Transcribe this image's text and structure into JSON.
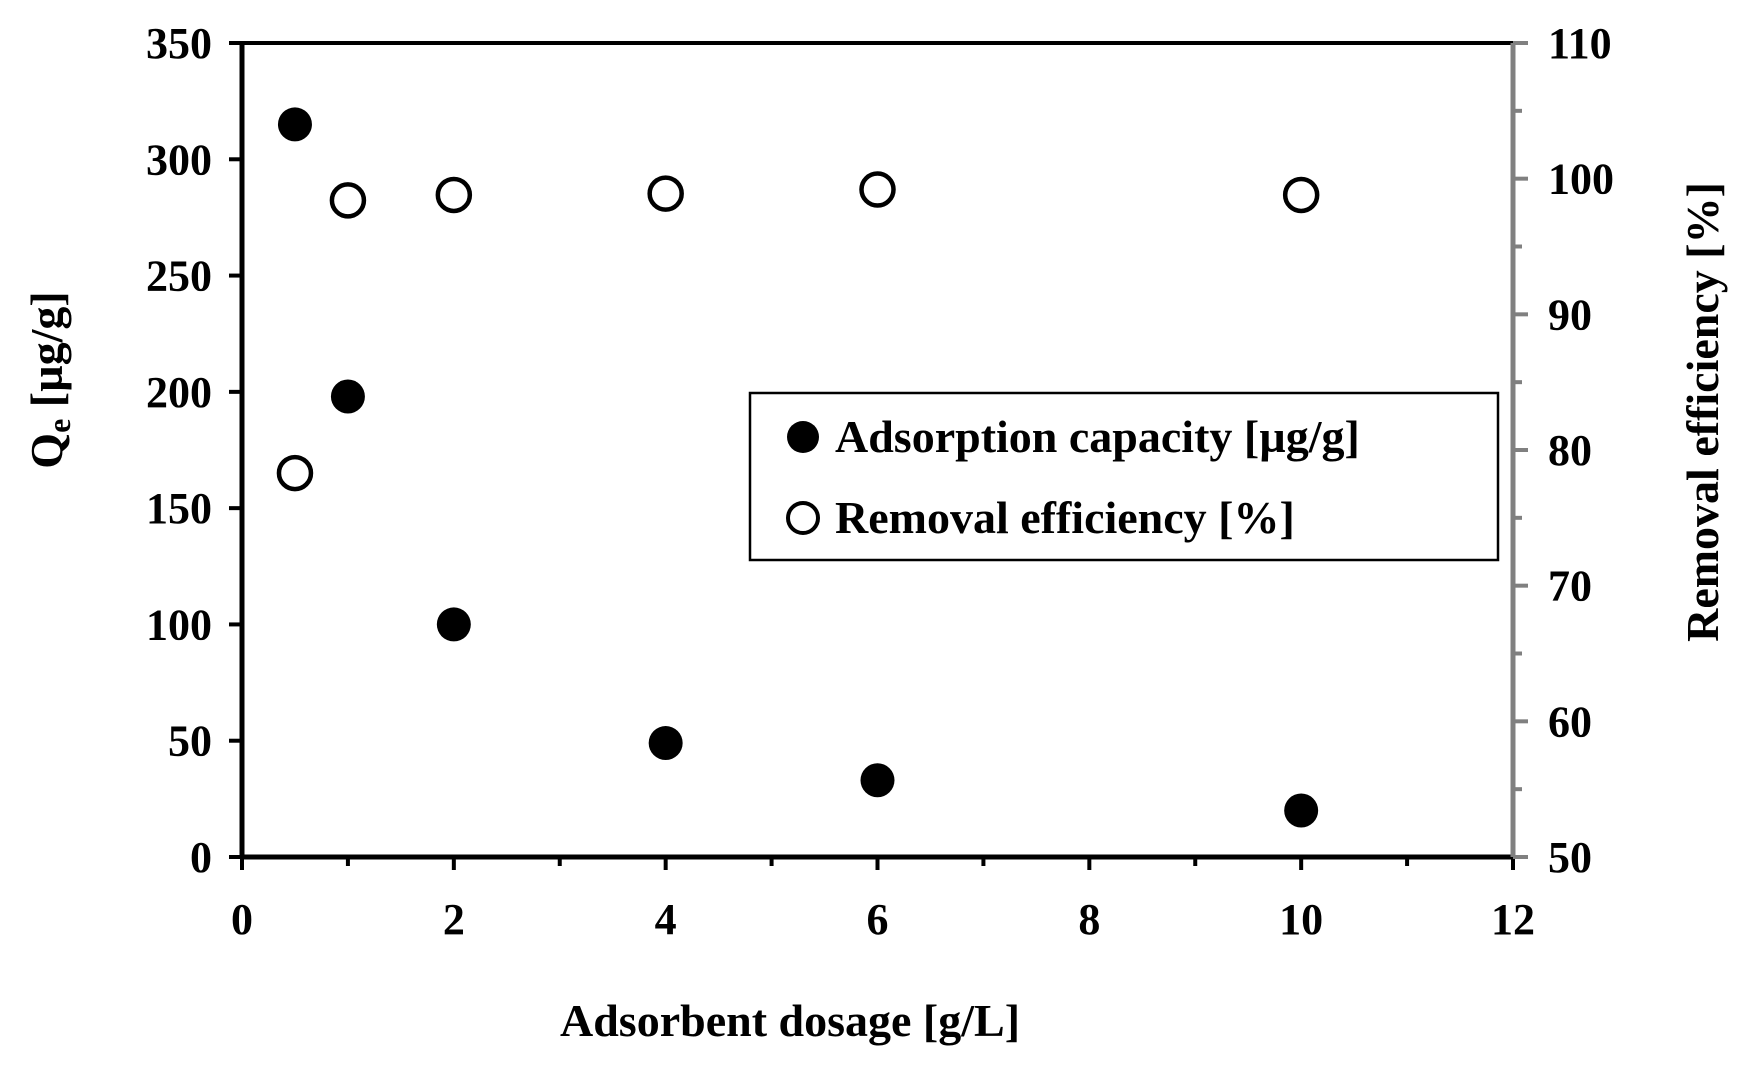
{
  "chart_data": {
    "type": "scatter",
    "title": "",
    "xlabel": "Adsorbent dosage [g/L]",
    "ylabel": "Qe [µg/g]",
    "ylabel_main": "Q",
    "ylabel_sub": "e",
    "ylabel_rest": " [µg/g]",
    "y2label": "Removal efficiency  [%]",
    "xlim": [
      0,
      12
    ],
    "ylim": [
      0,
      350
    ],
    "y2lim": [
      50,
      110
    ],
    "x_major_ticks": [
      0,
      2,
      4,
      6,
      8,
      10,
      12
    ],
    "x_minor_ticks": [
      1,
      3,
      5,
      7,
      9,
      11
    ],
    "y_ticks": [
      0,
      50,
      100,
      150,
      200,
      250,
      300,
      350
    ],
    "y2_major_ticks": [
      50,
      60,
      70,
      80,
      90,
      100,
      110
    ],
    "y2_minor_ticks": [
      55,
      65,
      75,
      85,
      95,
      105
    ],
    "x_tick_labels": [
      "0",
      "2",
      "4",
      "6",
      "8",
      "10",
      "12"
    ],
    "y_tick_labels": [
      "0",
      "50",
      "100",
      "150",
      "200",
      "250",
      "300",
      "350"
    ],
    "y2_tick_labels": [
      "50",
      "60",
      "70",
      "80",
      "90",
      "100",
      "110"
    ],
    "series": [
      {
        "name": "Adsorption capacity [µg/g]",
        "axis": "left",
        "marker": "filled-circle",
        "color": "#000000",
        "x": [
          0.5,
          1,
          2,
          4,
          6,
          10
        ],
        "y": [
          315,
          198,
          100,
          49,
          33,
          20
        ]
      },
      {
        "name": "Removal efficiency [%]",
        "axis": "right",
        "marker": "open-circle",
        "color": "#000000",
        "x": [
          0.5,
          1,
          2,
          4,
          6,
          10
        ],
        "y": [
          78.3,
          98.4,
          98.8,
          98.9,
          99.2,
          98.8
        ]
      }
    ],
    "legend": {
      "placement": "center-right",
      "entries": [
        "Adsorption capacity [µg/g]",
        "Removal efficiency [%]"
      ]
    },
    "colors": {
      "axis": "#000000",
      "right_axis": "#808080",
      "marker": "#000000",
      "background": "#ffffff"
    }
  }
}
